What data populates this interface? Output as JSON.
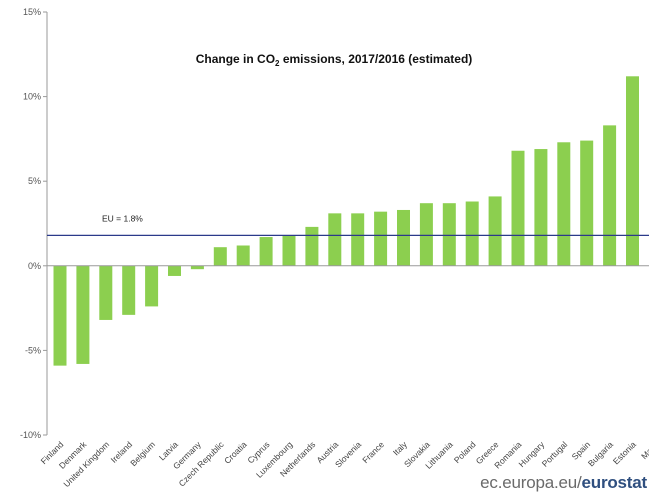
{
  "chart_data": {
    "type": "bar",
    "title": "Change in CO",
    "title_sub": "2",
    "title_rest": " emissions, 2017/2016 (estimated)",
    "ylim": [
      -10,
      15
    ],
    "yticks": [
      "15%",
      "10%",
      "5%",
      "0%",
      "-5%",
      "-10%"
    ],
    "ytick_values": [
      15,
      10,
      5,
      0,
      -5,
      -10
    ],
    "grid": false,
    "bar_color": "#8ccf4f",
    "reference_line": {
      "label": "EU = 1.8%",
      "value": 1.8,
      "color": "#2b3a8a"
    },
    "categories": [
      "Finland",
      "Denmark",
      "United Kingdom",
      "Ireland",
      "Belgium",
      "Latvia",
      "Germany",
      "Czech Republic",
      "Croatia",
      "Cyprus",
      "Luxembourg",
      "Netherlands",
      "Austria",
      "Slovenia",
      "France",
      "Italy",
      "Slovakia",
      "Lithuania",
      "Poland",
      "Greece",
      "Romania",
      "Hungary",
      "Portugal",
      "Spain",
      "Bulgaria",
      "Estonia",
      "Malta"
    ],
    "values": [
      -5.9,
      -5.8,
      -3.2,
      -2.9,
      -2.4,
      -0.6,
      -0.2,
      1.1,
      1.2,
      1.7,
      1.8,
      2.3,
      3.1,
      3.1,
      3.2,
      3.3,
      3.7,
      3.7,
      3.8,
      4.1,
      6.8,
      6.9,
      7.3,
      7.4,
      8.3,
      11.2,
      null
    ]
  },
  "source": {
    "prefix": "ec.europa.eu/",
    "brand": "eurostat"
  }
}
